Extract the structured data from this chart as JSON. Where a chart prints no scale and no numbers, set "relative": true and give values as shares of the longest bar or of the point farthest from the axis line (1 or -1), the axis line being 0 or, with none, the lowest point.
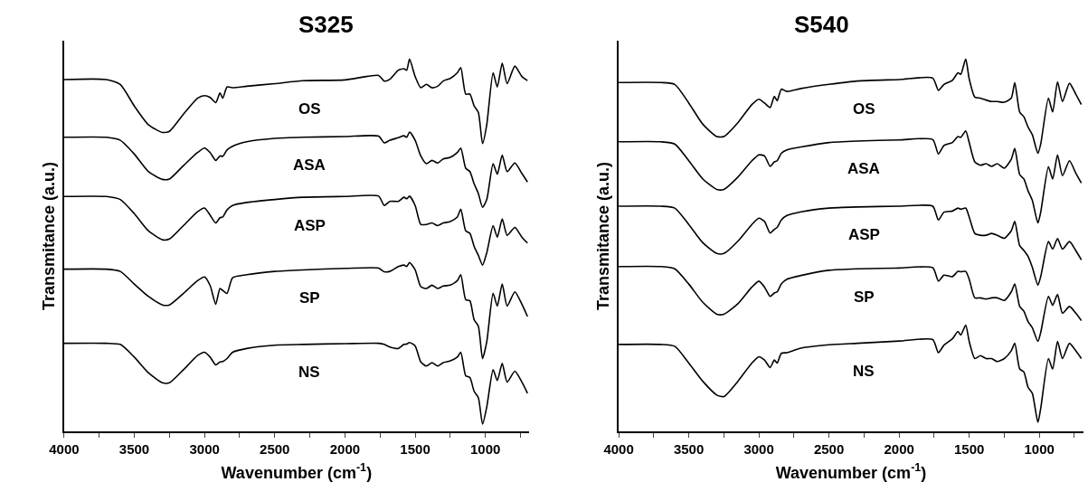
{
  "chart_data": [
    {
      "type": "line",
      "title": "S325",
      "xlabel": "Wavenumber (cm$^{-1}$)",
      "ylabel": "Transmitance (a.u.)",
      "relative": true,
      "tick_labels": "x",
      "legend": false,
      "marker": "none",
      "line_style": "solid",
      "xlim": [
        4000,
        690
      ],
      "xticks": [
        4000,
        {
          "value": 3750,
          "label": null
        },
        3500,
        {
          "value": 3250,
          "label": null
        },
        3000,
        {
          "value": 2750,
          "label": null
        },
        2500,
        {
          "value": 2250,
          "label": null
        },
        2000,
        {
          "value": 1750,
          "label": null
        },
        1500,
        {
          "value": 1250,
          "label": null
        },
        1000,
        {
          "value": 750,
          "label": null
        }
      ],
      "x": [
        4000,
        3700,
        3600,
        3500,
        3400,
        3300,
        3250,
        3150,
        3050,
        3000,
        2960,
        2920,
        2890,
        2870,
        2840,
        2800,
        2700,
        2500,
        2300,
        2000,
        1760,
        1720,
        1680,
        1620,
        1580,
        1560,
        1540,
        1500,
        1460,
        1420,
        1380,
        1340,
        1300,
        1250,
        1200,
        1175,
        1140,
        1110,
        1080,
        1050,
        1020,
        990,
        945,
        915,
        880,
        845,
        790,
        740,
        700
      ],
      "series": [
        {
          "name": "OS",
          "color": "#000000",
          "values": [
            0.945,
            0.945,
            0.932,
            0.874,
            0.824,
            0.803,
            0.806,
            0.852,
            0.895,
            0.902,
            0.897,
            0.883,
            0.909,
            0.895,
            0.925,
            0.923,
            0.927,
            0.934,
            0.942,
            0.944,
            0.956,
            0.941,
            0.946,
            0.97,
            0.974,
            0.97,
            1.0,
            0.953,
            0.923,
            0.932,
            0.923,
            0.927,
            0.941,
            0.948,
            0.963,
            0.977,
            0.906,
            0.906,
            0.874,
            0.857,
            0.773,
            0.824,
            0.963,
            0.925,
            0.989,
            0.934,
            0.981,
            0.953,
            0.942
          ]
        },
        {
          "name": "ASA",
          "color": "#000000",
          "values": [
            0.79,
            0.79,
            0.782,
            0.745,
            0.698,
            0.677,
            0.678,
            0.714,
            0.749,
            0.761,
            0.749,
            0.728,
            0.74,
            0.739,
            0.756,
            0.766,
            0.778,
            0.787,
            0.79,
            0.792,
            0.793,
            0.775,
            0.782,
            0.789,
            0.794,
            0.79,
            0.804,
            0.782,
            0.74,
            0.719,
            0.728,
            0.721,
            0.732,
            0.736,
            0.749,
            0.761,
            0.707,
            0.698,
            0.665,
            0.639,
            0.602,
            0.623,
            0.719,
            0.691,
            0.742,
            0.698,
            0.721,
            0.693,
            0.67
          ]
        },
        {
          "name": "ASP",
          "color": "#000000",
          "values": [
            0.631,
            0.631,
            0.623,
            0.585,
            0.539,
            0.515,
            0.517,
            0.553,
            0.59,
            0.6,
            0.581,
            0.56,
            0.574,
            0.576,
            0.595,
            0.607,
            0.615,
            0.623,
            0.629,
            0.631,
            0.632,
            0.607,
            0.618,
            0.618,
            0.629,
            0.625,
            0.632,
            0.607,
            0.556,
            0.556,
            0.56,
            0.553,
            0.56,
            0.564,
            0.576,
            0.597,
            0.539,
            0.532,
            0.497,
            0.473,
            0.447,
            0.48,
            0.553,
            0.522,
            0.571,
            0.527,
            0.548,
            0.522,
            0.506
          ]
        },
        {
          "name": "SP",
          "color": "#000000",
          "values": [
            0.436,
            0.436,
            0.43,
            0.396,
            0.363,
            0.34,
            0.34,
            0.371,
            0.405,
            0.415,
            0.392,
            0.342,
            0.384,
            0.379,
            0.371,
            0.413,
            0.421,
            0.43,
            0.434,
            0.438,
            0.439,
            0.429,
            0.43,
            0.443,
            0.447,
            0.443,
            0.454,
            0.434,
            0.389,
            0.384,
            0.393,
            0.384,
            0.391,
            0.393,
            0.405,
            0.421,
            0.354,
            0.351,
            0.3,
            0.283,
            0.196,
            0.241,
            0.371,
            0.337,
            0.396,
            0.337,
            0.375,
            0.342,
            0.309
          ]
        },
        {
          "name": "NS",
          "color": "#000000",
          "values": [
            0.237,
            0.237,
            0.234,
            0.2,
            0.158,
            0.131,
            0.131,
            0.166,
            0.204,
            0.213,
            0.2,
            0.179,
            0.187,
            0.188,
            0.196,
            0.213,
            0.223,
            0.232,
            0.234,
            0.236,
            0.237,
            0.234,
            0.227,
            0.223,
            0.234,
            0.235,
            0.239,
            0.23,
            0.187,
            0.176,
            0.185,
            0.176,
            0.185,
            0.19,
            0.2,
            0.213,
            0.15,
            0.145,
            0.108,
            0.091,
            0.02,
            0.066,
            0.166,
            0.137,
            0.183,
            0.133,
            0.162,
            0.133,
            0.103
          ]
        }
      ]
    },
    {
      "type": "line",
      "title": "S540",
      "xlabel": "Wavenumber (cm$^{-1}$)",
      "ylabel": "Transmitance (a.u.)",
      "relative": true,
      "tick_labels": "x",
      "legend": false,
      "marker": "none",
      "line_style": "solid",
      "xlim": [
        4000,
        685
      ],
      "xticks": [
        4000,
        {
          "value": 3750,
          "label": null
        },
        3500,
        {
          "value": 3250,
          "label": null
        },
        3000,
        {
          "value": 2750,
          "label": null
        },
        2500,
        {
          "value": 2250,
          "label": null
        },
        2000,
        {
          "value": 1750,
          "label": null
        },
        1500,
        {
          "value": 1250,
          "label": null
        },
        1000,
        {
          "value": 750,
          "label": null
        }
      ],
      "x": [
        4000,
        3700,
        3600,
        3500,
        3400,
        3300,
        3250,
        3150,
        3050,
        3000,
        2960,
        2920,
        2890,
        2870,
        2840,
        2800,
        2700,
        2500,
        2300,
        2000,
        1760,
        1720,
        1680,
        1620,
        1580,
        1560,
        1525,
        1500,
        1460,
        1420,
        1380,
        1340,
        1300,
        1250,
        1200,
        1175,
        1140,
        1110,
        1080,
        1050,
        1010,
        990,
        935,
        905,
        870,
        835,
        785,
        740,
        700
      ],
      "series": [
        {
          "name": "OS",
          "color": "#000000",
          "values": [
            0.937,
            0.937,
            0.932,
            0.882,
            0.825,
            0.792,
            0.792,
            0.829,
            0.878,
            0.892,
            0.882,
            0.87,
            0.9,
            0.888,
            0.919,
            0.913,
            0.921,
            0.932,
            0.941,
            0.945,
            0.949,
            0.916,
            0.932,
            0.943,
            0.963,
            0.959,
            1.0,
            0.947,
            0.898,
            0.895,
            0.89,
            0.886,
            0.886,
            0.884,
            0.895,
            0.937,
            0.858,
            0.845,
            0.817,
            0.797,
            0.747,
            0.772,
            0.895,
            0.858,
            0.939,
            0.886,
            0.935,
            0.906,
            0.878
          ]
        },
        {
          "name": "ASA",
          "color": "#000000",
          "values": [
            0.778,
            0.778,
            0.772,
            0.727,
            0.678,
            0.65,
            0.65,
            0.683,
            0.727,
            0.743,
            0.74,
            0.712,
            0.724,
            0.727,
            0.747,
            0.756,
            0.764,
            0.776,
            0.78,
            0.783,
            0.784,
            0.745,
            0.768,
            0.776,
            0.792,
            0.79,
            0.807,
            0.776,
            0.724,
            0.715,
            0.719,
            0.712,
            0.719,
            0.707,
            0.731,
            0.76,
            0.69,
            0.678,
            0.646,
            0.621,
            0.56,
            0.589,
            0.711,
            0.678,
            0.743,
            0.687,
            0.727,
            0.694,
            0.667
          ]
        },
        {
          "name": "ASP",
          "color": "#000000",
          "values": [
            0.605,
            0.605,
            0.6,
            0.556,
            0.507,
            0.478,
            0.478,
            0.511,
            0.556,
            0.573,
            0.564,
            0.533,
            0.543,
            0.548,
            0.568,
            0.58,
            0.59,
            0.6,
            0.603,
            0.605,
            0.605,
            0.568,
            0.589,
            0.592,
            0.6,
            0.597,
            0.6,
            0.576,
            0.532,
            0.527,
            0.527,
            0.532,
            0.527,
            0.519,
            0.539,
            0.564,
            0.499,
            0.486,
            0.47,
            0.441,
            0.393,
            0.416,
            0.51,
            0.49,
            0.518,
            0.49,
            0.51,
            0.486,
            0.461
          ]
        },
        {
          "name": "SP",
          "color": "#000000",
          "values": [
            0.443,
            0.443,
            0.437,
            0.396,
            0.347,
            0.315,
            0.315,
            0.343,
            0.388,
            0.404,
            0.388,
            0.363,
            0.372,
            0.375,
            0.396,
            0.409,
            0.419,
            0.433,
            0.437,
            0.439,
            0.44,
            0.404,
            0.42,
            0.416,
            0.43,
            0.429,
            0.43,
            0.409,
            0.359,
            0.359,
            0.356,
            0.359,
            0.359,
            0.352,
            0.375,
            0.396,
            0.336,
            0.323,
            0.295,
            0.279,
            0.242,
            0.266,
            0.363,
            0.339,
            0.368,
            0.318,
            0.336,
            0.318,
            0.298
          ]
        },
        {
          "name": "NS",
          "color": "#000000",
          "values": [
            0.234,
            0.234,
            0.229,
            0.184,
            0.135,
            0.098,
            0.094,
            0.135,
            0.184,
            0.201,
            0.192,
            0.172,
            0.192,
            0.184,
            0.21,
            0.212,
            0.224,
            0.233,
            0.237,
            0.243,
            0.247,
            0.212,
            0.232,
            0.249,
            0.269,
            0.259,
            0.286,
            0.242,
            0.196,
            0.204,
            0.196,
            0.196,
            0.188,
            0.196,
            0.217,
            0.237,
            0.168,
            0.16,
            0.119,
            0.103,
            0.025,
            0.062,
            0.196,
            0.168,
            0.242,
            0.196,
            0.237,
            0.217,
            0.196
          ]
        }
      ]
    }
  ]
}
